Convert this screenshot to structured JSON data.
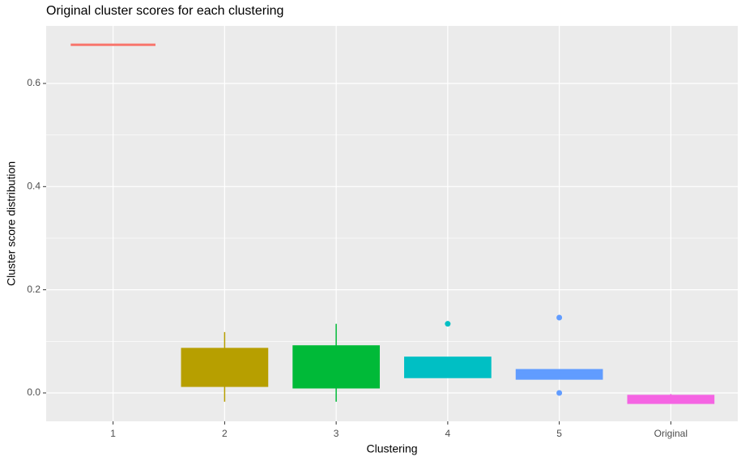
{
  "chart_data": {
    "type": "box",
    "title": "Original cluster scores for each clustering",
    "x_label": "Clustering",
    "y_label": "Cluster score distribution",
    "categories": [
      "1",
      "2",
      "3",
      "4",
      "5",
      "Original"
    ],
    "colors": [
      "#F8766D",
      "#B79F00",
      "#00BA38",
      "#00BFC4",
      "#619CFF",
      "#F564E3"
    ],
    "boxes": [
      {
        "min": 0.675,
        "q1": 0.675,
        "median": 0.675,
        "q3": 0.675,
        "max": 0.675,
        "outliers": []
      },
      {
        "min": -0.017,
        "q1": 0.014,
        "median": 0.05,
        "q3": 0.085,
        "max": 0.118,
        "outliers": []
      },
      {
        "min": -0.017,
        "q1": 0.011,
        "median": 0.05,
        "q3": 0.09,
        "max": 0.134,
        "outliers": []
      },
      {
        "min": 0.031,
        "q1": 0.031,
        "median": 0.05,
        "q3": 0.068,
        "max": 0.068,
        "outliers": [
          0.134
        ]
      },
      {
        "min": 0.028,
        "q1": 0.028,
        "median": 0.035,
        "q3": 0.044,
        "max": 0.044,
        "outliers": [
          0.146,
          0.0
        ]
      },
      {
        "min": -0.019,
        "q1": -0.019,
        "median": -0.013,
        "q3": -0.006,
        "max": -0.002,
        "outliers": []
      }
    ],
    "ylim": [
      -0.055,
      0.7115
    ],
    "yticks": [
      {
        "value": 0,
        "label": "0.0"
      },
      0.2,
      0.4,
      0.6
    ],
    "yminor": [
      0.1,
      0.3,
      0.5
    ],
    "grid": true
  }
}
